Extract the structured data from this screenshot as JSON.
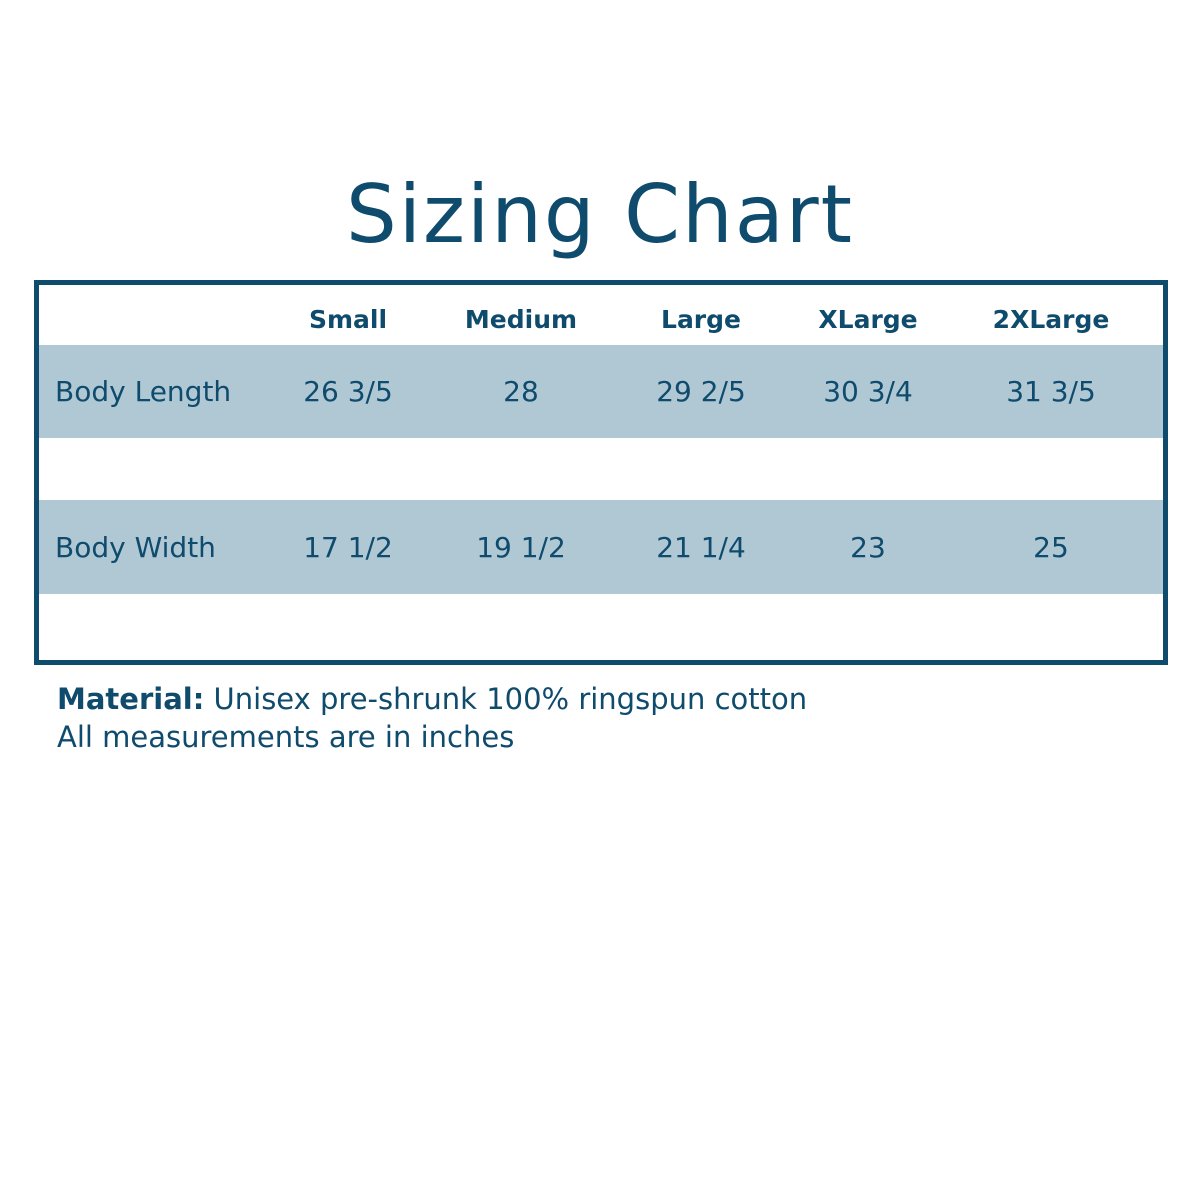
{
  "title": "Sizing Chart",
  "colors": {
    "primary": "#0f4b6d",
    "row_band": "#b0c8d4"
  },
  "table": {
    "columns": [
      "Small",
      "Medium",
      "Large",
      "XLarge",
      "2XLarge"
    ],
    "rows": [
      {
        "label": "Body Length",
        "values": [
          "26 3/5",
          "28",
          "29 2/5",
          "30 3/4",
          "31 3/5"
        ]
      },
      {
        "label": "Body Width",
        "values": [
          "17 1/2",
          "19 1/2",
          "21 1/4",
          "23",
          "25"
        ]
      }
    ]
  },
  "notes": {
    "material_label": "Material:",
    "material_value": "Unisex pre-shrunk 100% ringspun cotton",
    "units": "All measurements are in inches"
  }
}
